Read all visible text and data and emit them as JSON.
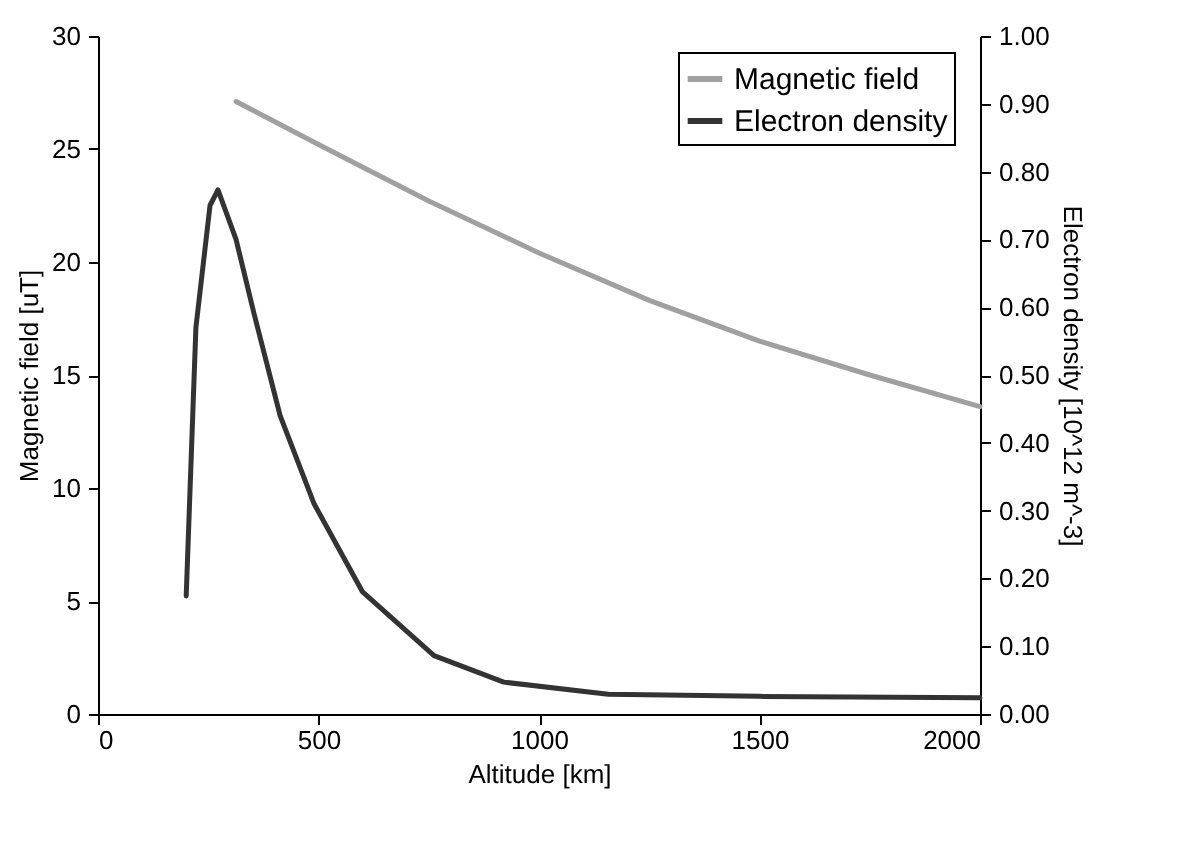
{
  "chart_data": {
    "type": "line",
    "xlabel": "Altitude [km]",
    "ylabel": "Magnetic field [uT]",
    "y2label": "Electron density [10^12 m^-3]",
    "xlim": [
      0,
      2000
    ],
    "xticks": [
      0,
      500,
      1000,
      1500,
      2000
    ],
    "ylim": [
      0,
      30
    ],
    "yticks": [
      0,
      5,
      10,
      15,
      20,
      25,
      30
    ],
    "y2lim": [
      0,
      1
    ],
    "y2ticks": [
      {
        "value": 0,
        "label": "0.00"
      },
      {
        "value": 0.1,
        "label": "0.10"
      },
      {
        "value": 0.2,
        "label": "0.20"
      },
      {
        "value": 0.3,
        "label": "0.30"
      },
      {
        "value": 0.4,
        "label": "0.40"
      },
      {
        "value": 0.5,
        "label": "0.50"
      },
      {
        "value": 0.6,
        "label": "0.60"
      },
      {
        "value": 0.7,
        "label": "0.70"
      },
      {
        "value": 0.8,
        "label": "0.80"
      },
      {
        "value": 0.9,
        "label": "0.90"
      },
      {
        "value": 1,
        "label": "1.00"
      }
    ],
    "legend": "top right",
    "grid": false,
    "marker": "none",
    "line_style": "solid",
    "series": [
      {
        "name": "Magnetic field",
        "color": "#a0a0a0",
        "x": [
          313,
          500,
          750,
          1000,
          1250,
          1500,
          1750,
          2000
        ],
        "values": [
          27.1,
          25.2,
          22.7,
          20.4,
          18.3,
          16.5,
          15.0,
          13.6
        ]
      },
      {
        "name": "Electron density",
        "color": "#333333",
        "axis": "y2",
        "x": [
          200,
          222,
          254,
          272,
          313,
          354,
          413,
          490,
          600,
          762,
          920,
          1157,
          1500,
          2000
        ],
        "values": [
          0.174,
          0.57,
          0.75,
          0.773,
          0.7,
          0.59,
          0.44,
          0.31,
          0.18,
          0.086,
          0.047,
          0.029,
          0.026,
          0.024
        ]
      }
    ]
  }
}
